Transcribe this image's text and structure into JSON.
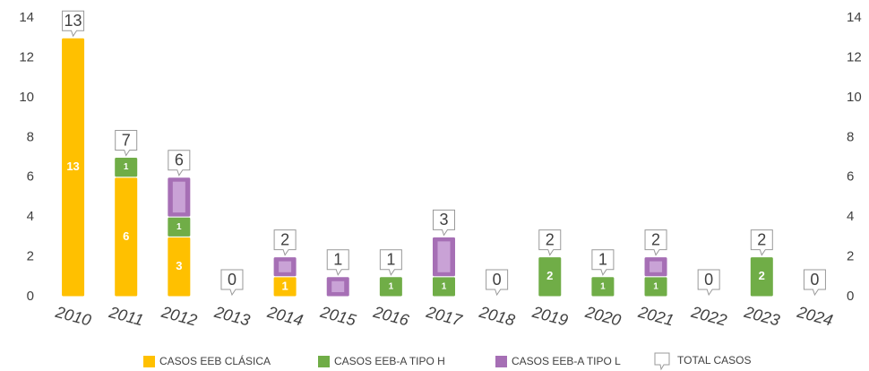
{
  "chart_data": {
    "type": "stacked_bar",
    "categories": [
      "2010",
      "2011",
      "2012",
      "2013",
      "2014",
      "2015",
      "2016",
      "2017",
      "2018",
      "2019",
      "2020",
      "2021",
      "2022",
      "2023",
      "2024"
    ],
    "series": [
      {
        "name": "CASOS EEB CLÁSICA",
        "color": "#ffc000",
        "show_value_labels": true,
        "values": [
          13,
          6,
          3,
          0,
          1,
          0,
          0,
          0,
          0,
          0,
          0,
          0,
          0,
          0,
          0
        ]
      },
      {
        "name": "CASOS EEB-A TIPO H",
        "color": "#70ad47",
        "show_value_labels": true,
        "values": [
          0,
          1,
          1,
          0,
          0,
          0,
          1,
          1,
          0,
          2,
          1,
          1,
          0,
          2,
          0
        ]
      },
      {
        "name": "CASOS EEB-A TIPO L",
        "color": "#a66fb5",
        "show_value_labels": false,
        "values": [
          0,
          0,
          2,
          0,
          1,
          1,
          0,
          2,
          0,
          0,
          0,
          1,
          0,
          0,
          0
        ]
      }
    ],
    "totals": {
      "name": "TOTAL CASOS",
      "values": [
        13,
        7,
        6,
        0,
        2,
        1,
        1,
        3,
        0,
        2,
        1,
        2,
        0,
        2,
        0
      ]
    },
    "ylim": [
      0,
      14
    ],
    "yticks": [
      0,
      2,
      4,
      6,
      8,
      10,
      12,
      14
    ],
    "y2lim": [
      0,
      14
    ],
    "y2ticks": [
      0,
      2,
      4,
      6,
      8,
      10,
      12,
      14
    ],
    "grid": false,
    "legend": "bottom"
  }
}
